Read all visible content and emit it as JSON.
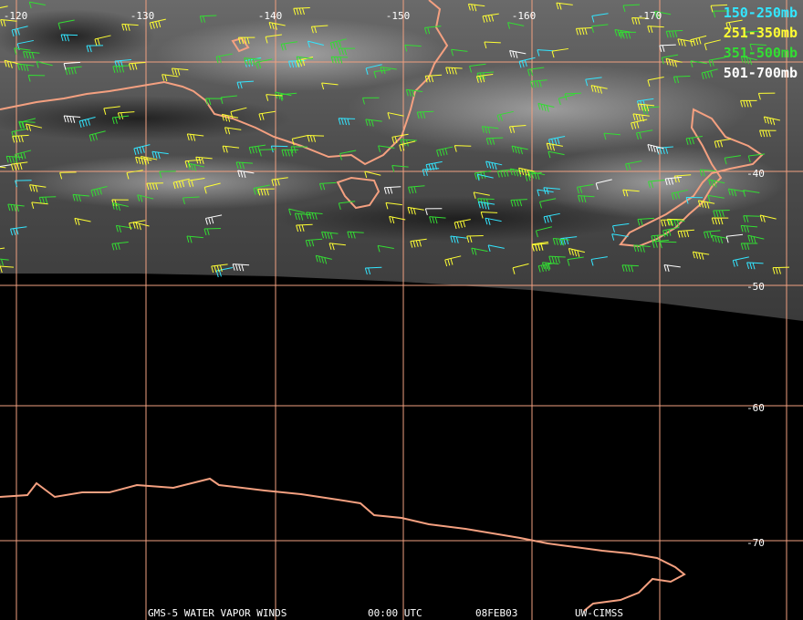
{
  "map": {
    "longitude_labels": [
      "-120",
      "-130",
      "-140",
      "-150",
      "-160",
      "-170"
    ],
    "latitude_labels": [
      "-40",
      "-50",
      "-60",
      "-70"
    ],
    "legend": [
      {
        "label": "150-250mb",
        "color": "#33e6ff"
      },
      {
        "label": "251-350mb",
        "color": "#ffff33"
      },
      {
        "label": "351-500mb",
        "color": "#33dd33"
      },
      {
        "label": "501-700mb",
        "color": "#ffffff"
      }
    ],
    "footer": [
      "GMS-5 WATER VAPOR WINDS",
      "00:00 UTC",
      "08FEB03",
      "UW-CIMSS"
    ]
  }
}
